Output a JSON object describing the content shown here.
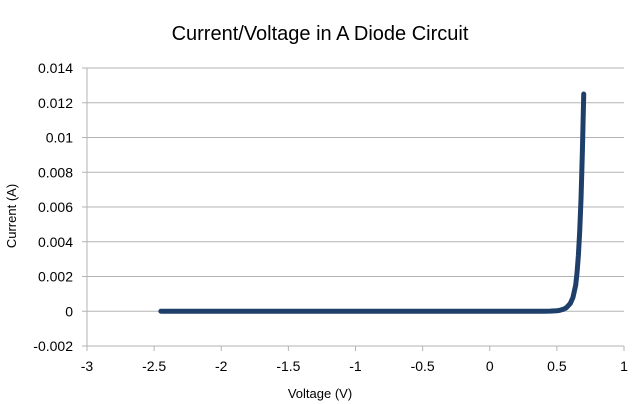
{
  "chart_data": {
    "type": "line",
    "title": "Current/Voltage in A Diode Circuit",
    "xlabel": "Voltage  (V)",
    "ylabel": "Current  (A)",
    "xlim": [
      -3,
      1
    ],
    "ylim": [
      -0.002,
      0.014
    ],
    "x_ticks": [
      -3,
      -2.5,
      -2,
      -1.5,
      -1,
      -0.5,
      0,
      0.5,
      1
    ],
    "x_tick_labels": [
      "-3",
      "-2.5",
      "-2",
      "-1.5",
      "-1",
      "-0.5",
      "0",
      "0.5",
      "1"
    ],
    "y_ticks": [
      -0.002,
      0,
      0.002,
      0.004,
      0.006,
      0.008,
      0.01,
      0.012,
      0.014
    ],
    "y_tick_labels": [
      "-0.002",
      "0",
      "0.002",
      "0.004",
      "0.006",
      "0.008",
      "0.01",
      "0.012",
      "0.014"
    ],
    "grid": "horizontal",
    "legend": "none",
    "series": [
      {
        "color": "#1f3f6b",
        "x": [
          -2.45,
          -2.0,
          -1.5,
          -1.0,
          -0.5,
          0.0,
          0.3,
          0.4,
          0.45,
          0.5,
          0.52,
          0.55,
          0.57,
          0.6,
          0.62,
          0.64,
          0.65,
          0.66,
          0.67,
          0.68,
          0.69,
          0.7
        ],
        "y": [
          0,
          0,
          0,
          0,
          0,
          0,
          0,
          0,
          1e-05,
          3e-05,
          5e-05,
          0.00012,
          0.0002,
          0.00045,
          0.0008,
          0.0015,
          0.0022,
          0.0032,
          0.0046,
          0.0065,
          0.0092,
          0.0125
        ]
      }
    ]
  }
}
